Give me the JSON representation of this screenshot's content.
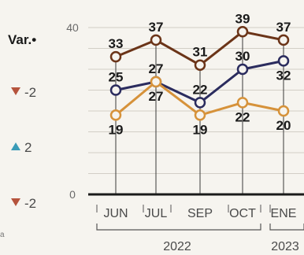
{
  "legend": {
    "header": "Var.•",
    "changes": [
      {
        "text": "-2",
        "direction": "down",
        "color": "#b5533c"
      },
      {
        "text": "2",
        "direction": "up",
        "color": "#3a9bb7"
      },
      {
        "text": "-2",
        "direction": "down",
        "color": "#b5533c"
      }
    ]
  },
  "left_fragment": "a",
  "chart_data": {
    "type": "line",
    "categories": [
      "JUN",
      "JUL",
      "SEP",
      "OCT",
      "ENE"
    ],
    "year_groups": [
      {
        "label": "2022",
        "from": 0,
        "to": 3
      },
      {
        "label": "2023",
        "from": 4,
        "to": 4
      }
    ],
    "ylim": [
      0,
      40
    ],
    "yticks": [
      0,
      40
    ],
    "series": [
      {
        "values": [
          33,
          37,
          31,
          39,
          37
        ],
        "color": "#6b3418",
        "label_pos": "above"
      },
      {
        "values": [
          25,
          27,
          22,
          30,
          32
        ],
        "color": "#2b2c5e",
        "label_pos": [
          "above",
          "above",
          "above",
          "above",
          "below"
        ]
      },
      {
        "values": [
          19,
          27,
          19,
          22,
          20
        ],
        "color": "#d6923a",
        "label_pos": "below"
      }
    ],
    "grid": true
  }
}
